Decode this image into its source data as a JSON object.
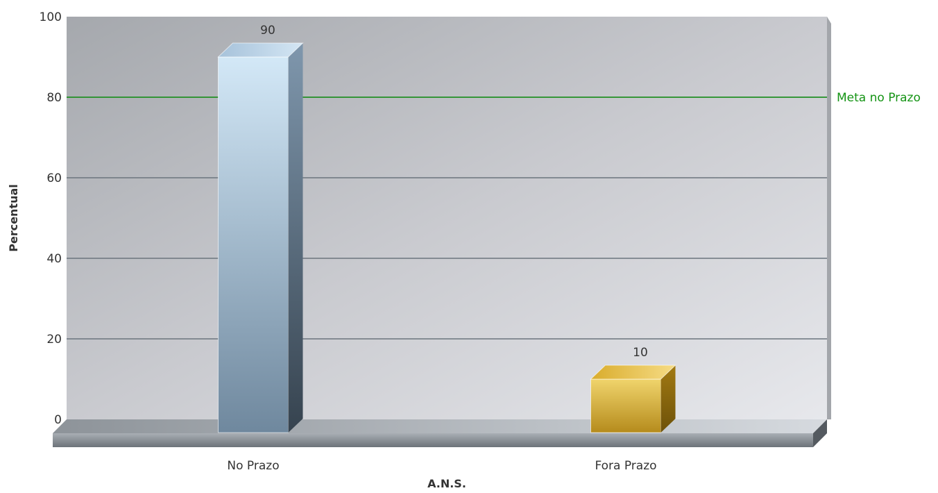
{
  "chart_data": {
    "type": "bar",
    "categories": [
      "No Prazo",
      "Fora Prazo"
    ],
    "values": [
      90,
      10
    ],
    "bar_colors": [
      "#9cb4c8",
      "#d6ad33"
    ],
    "xlabel": "A.N.S.",
    "ylabel": "Percentual",
    "ylim": [
      0,
      100
    ],
    "yticks": [
      0,
      20,
      40,
      60,
      80,
      100
    ],
    "grid": true,
    "target_line": {
      "value": 80,
      "label": "Meta no Prazo",
      "color": "#159415"
    }
  }
}
